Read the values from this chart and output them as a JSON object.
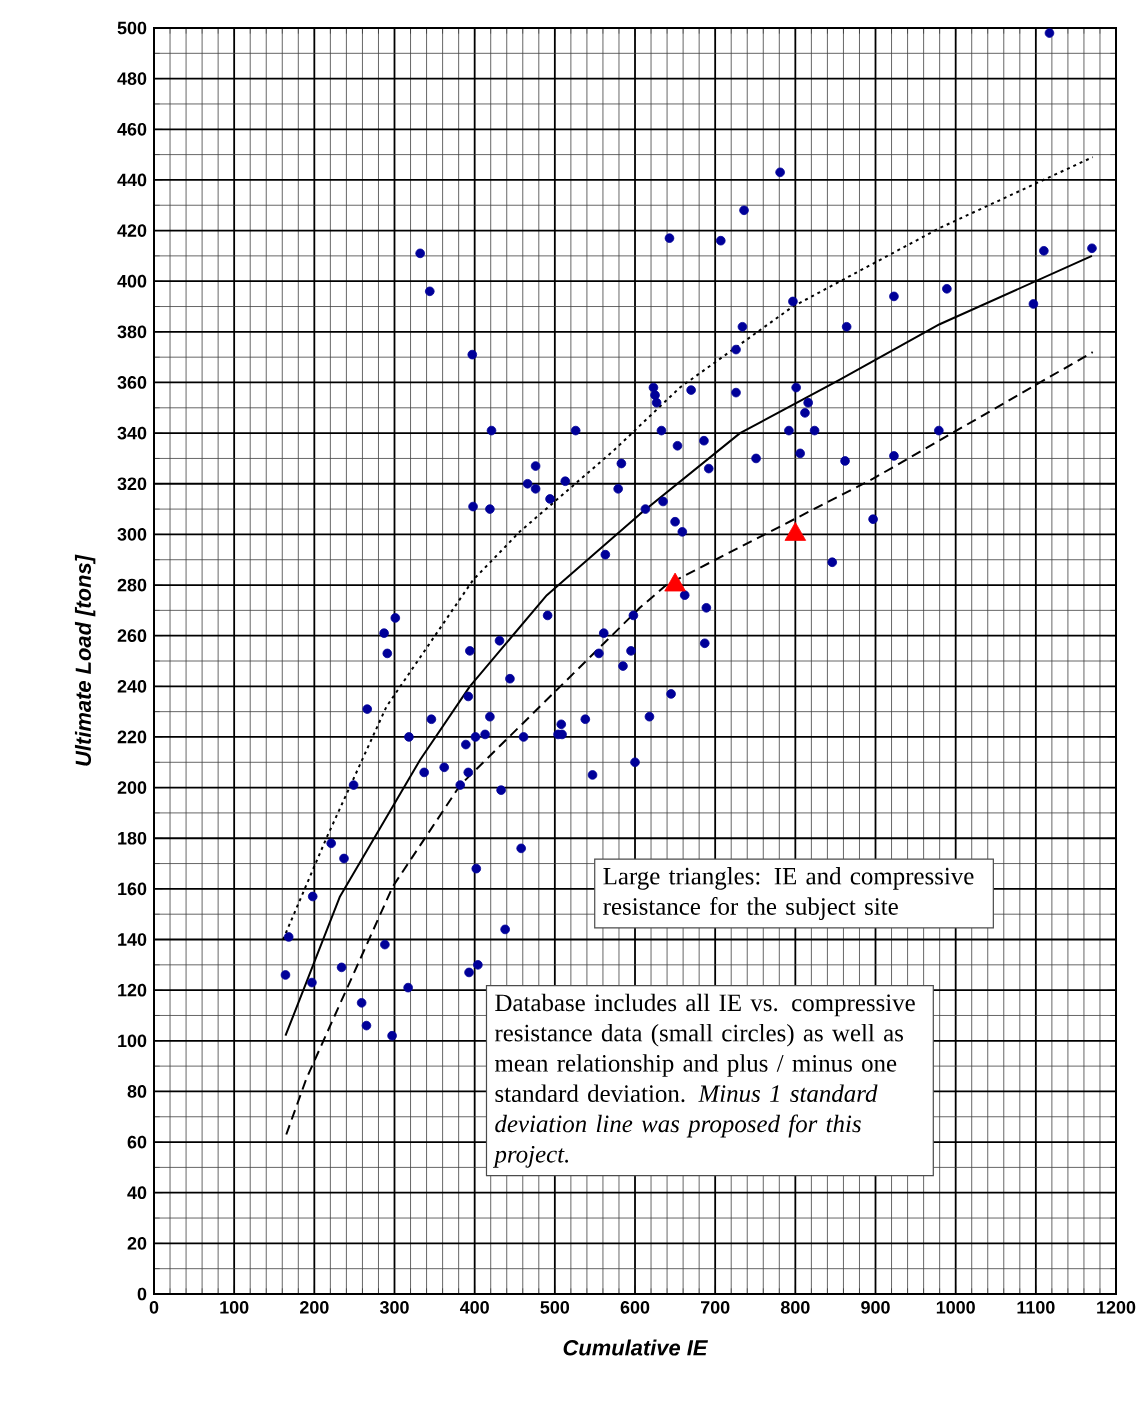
{
  "chart_data": {
    "type": "scatter",
    "xlabel": "Cumulative IE",
    "ylabel": "Ultimate Load [tons]",
    "xlim": [
      0,
      1200
    ],
    "ylim": [
      0,
      500
    ],
    "xticks": [
      0,
      100,
      200,
      300,
      400,
      500,
      600,
      700,
      800,
      900,
      1000,
      1100,
      1200
    ],
    "yticks": [
      0,
      20,
      40,
      60,
      80,
      100,
      120,
      140,
      160,
      180,
      200,
      220,
      240,
      260,
      280,
      300,
      320,
      340,
      360,
      380,
      400,
      420,
      440,
      460,
      480,
      500
    ],
    "grid": true,
    "series": [
      {
        "marker": "circle",
        "color": "#000099",
        "x": [
          332,
          344,
          397,
          421,
          398,
          419,
          643,
          623,
          625,
          627,
          633,
          653,
          526,
          476,
          466,
          476,
          494,
          513,
          583,
          579,
          613,
          635,
          650,
          563,
          491,
          301,
          287,
          291,
          266,
          249,
          221,
          237,
          198,
          168,
          164,
          197,
          234,
          259,
          265,
          297,
          288,
          317,
          318,
          346,
          337,
          362,
          394,
          392,
          431,
          444,
          389,
          401,
          413,
          419,
          392,
          382,
          433,
          461,
          458,
          402,
          438,
          393,
          404,
          508,
          504,
          509,
          538,
          547,
          561,
          555,
          595,
          585,
          598,
          600,
          618,
          645,
          1117,
          781,
          736,
          707,
          1110,
          1170,
          923,
          989,
          797,
          1097,
          734,
          726,
          864,
          670,
          726,
          801,
          816,
          812,
          792,
          824,
          979,
          686,
          806,
          923,
          751,
          862,
          692,
          659,
          897,
          846,
          662,
          689,
          687
        ],
        "values": [
          411,
          396,
          371,
          341,
          311,
          310,
          417,
          358,
          355,
          352,
          341,
          335,
          341,
          327,
          320,
          318,
          314,
          321,
          328,
          318,
          310,
          313,
          305,
          292,
          268,
          267,
          261,
          253,
          231,
          201,
          178,
          172,
          157,
          141,
          126,
          123,
          129,
          115,
          106,
          102,
          138,
          121,
          220,
          227,
          206,
          208,
          254,
          236,
          258,
          243,
          217,
          220,
          221,
          228,
          206,
          201,
          199,
          220,
          176,
          168,
          144,
          127,
          130,
          225,
          221,
          221,
          227,
          205,
          261,
          253,
          254,
          248,
          268,
          210,
          228,
          237,
          498,
          443,
          428,
          416,
          412,
          413,
          394,
          397,
          392,
          391,
          382,
          373,
          382,
          357,
          356,
          358,
          352,
          348,
          341,
          341,
          341,
          337,
          332,
          331,
          330,
          329,
          326,
          301,
          306,
          289,
          276,
          271,
          257
        ]
      },
      {
        "marker": "triangle",
        "color": "#ff0000",
        "x": [
          650,
          800
        ],
        "values": [
          280,
          300
        ]
      },
      {
        "type": "line",
        "line_style": "solid",
        "color": "#000000",
        "x": [
          164,
          232,
          332,
          394,
          490,
          606,
          731,
          855,
          980,
          1170
        ],
        "values": [
          102,
          157,
          211,
          240,
          276,
          308,
          340,
          361,
          383,
          410
        ]
      },
      {
        "type": "line",
        "line_style": "dotted",
        "color": "#000000",
        "x": [
          161,
          215,
          290,
          398,
          456,
          573,
          656,
          797,
          980,
          1171
        ],
        "values": [
          140,
          180,
          232,
          282,
          301,
          333,
          358,
          390,
          421,
          449
        ]
      },
      {
        "type": "line",
        "line_style": "dashed",
        "color": "#000000",
        "x": [
          165,
          190,
          298,
          382,
          523,
          606,
          639,
          897,
          1171
        ],
        "values": [
          63,
          85,
          161,
          201,
          245,
          271,
          280,
          322,
          372
        ]
      }
    ],
    "annotations": [
      "Large triangles: IE and compressive resistance for the subject site",
      "Database includes all IE vs. compressive resistance data  (small circles) as well as mean relationship and plus / minus one standard deviation. *Minus 1 standard deviation line was proposed for this project.*"
    ]
  }
}
